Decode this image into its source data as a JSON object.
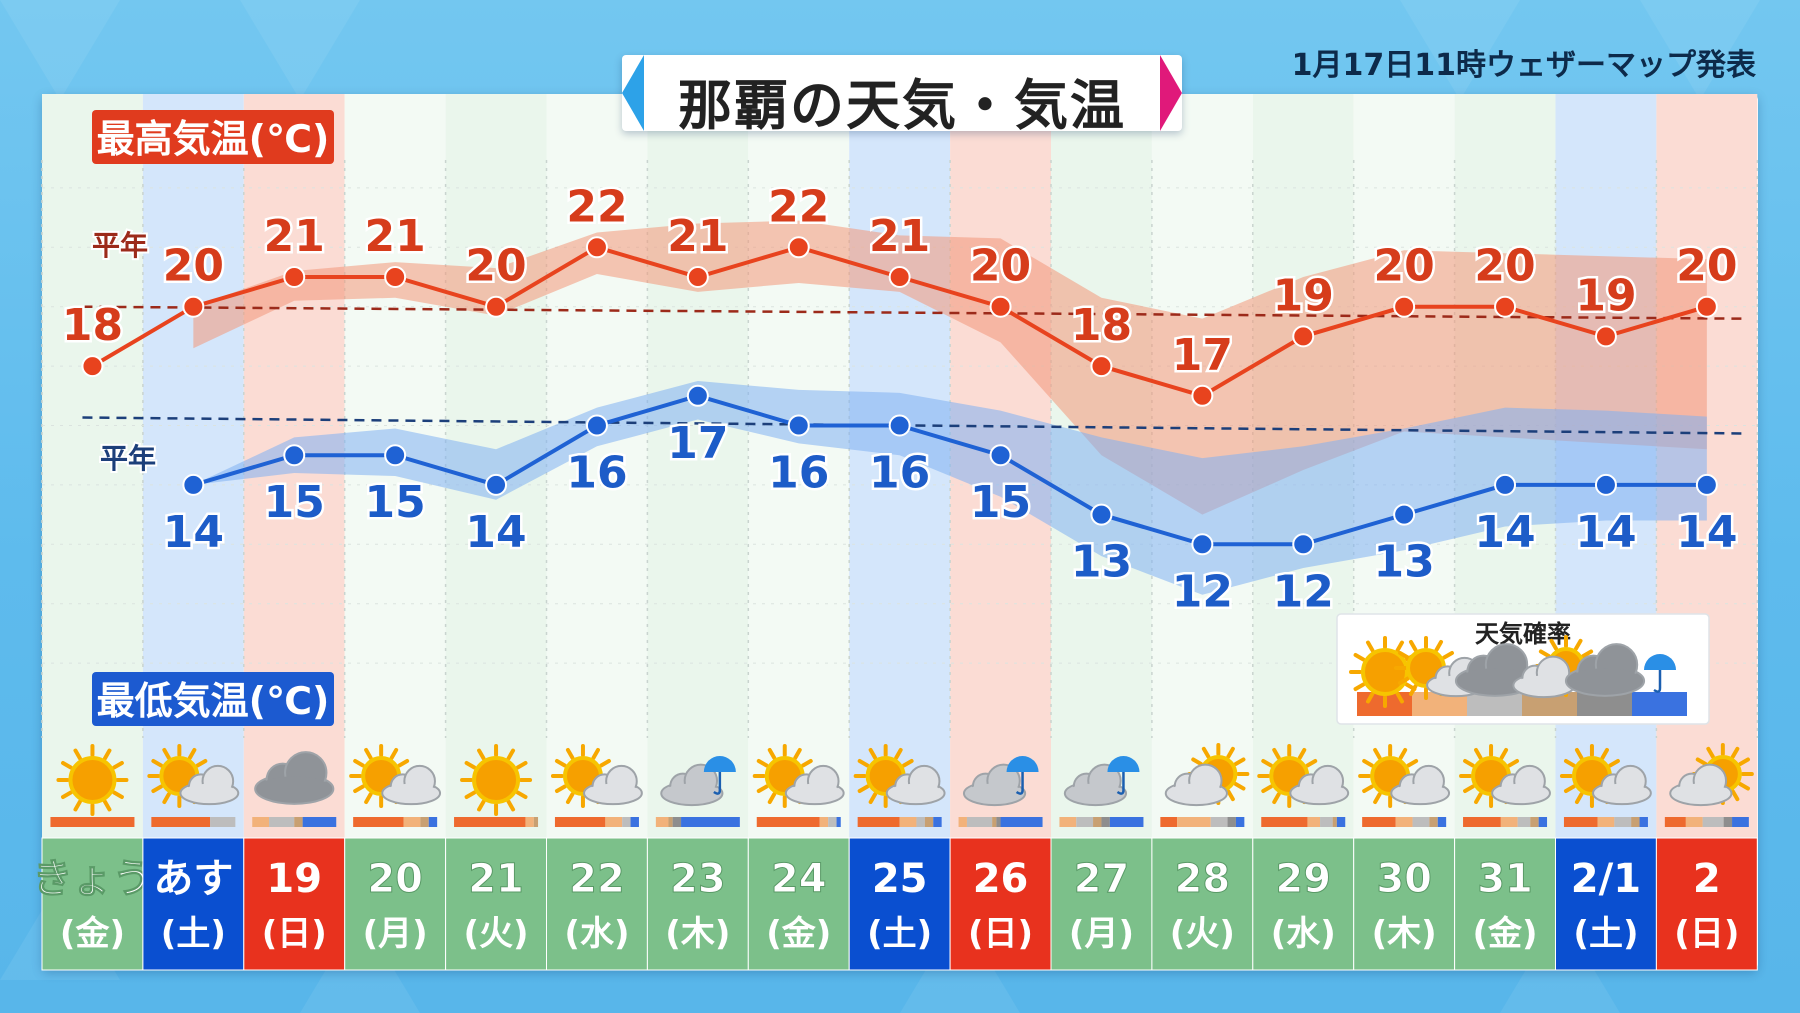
{
  "title": "那覇の天気・気温",
  "issued": "1月17日11時ウェザーマップ発表",
  "labels": {
    "high_title": "最高気温(℃)",
    "low_title": "最低気温(℃)",
    "normal_high": "平年",
    "normal_low": "平年",
    "legend_title": "天気確率"
  },
  "colors": {
    "high_line": "#e8431e",
    "low_line": "#1f62d4",
    "sat_header": "#0a4fd0",
    "sun_header": "#e8321e",
    "weekday_header": "#7cc08a"
  },
  "chart_data": {
    "type": "line",
    "title": "那覇の天気・気温",
    "ylim": [
      5,
      27
    ],
    "grid": true,
    "categories": [
      "きょう(金)",
      "あす(土)",
      "19(日)",
      "20(月)",
      "21(火)",
      "22(水)",
      "23(木)",
      "24(金)",
      "25(土)",
      "26(日)",
      "27(月)",
      "28(火)",
      "29(水)",
      "30(木)",
      "31(金)",
      "2/1(土)",
      "2(日)"
    ],
    "days": [
      {
        "top": "きょう",
        "dow": "(金)",
        "kind": "weekday",
        "icon": "sunny-icon"
      },
      {
        "top": "あす",
        "dow": "(土)",
        "kind": "sat",
        "icon": "sunny-cloudy-icon"
      },
      {
        "top": "19",
        "dow": "(日)",
        "kind": "sun",
        "icon": "cloudy-icon"
      },
      {
        "top": "20",
        "dow": "(月)",
        "kind": "weekday",
        "icon": "sunny-cloudy-icon"
      },
      {
        "top": "21",
        "dow": "(火)",
        "kind": "weekday",
        "icon": "sunny-icon"
      },
      {
        "top": "22",
        "dow": "(水)",
        "kind": "weekday",
        "icon": "sunny-cloudy-icon"
      },
      {
        "top": "23",
        "dow": "(木)",
        "kind": "weekday",
        "icon": "cloudy-rain-icon"
      },
      {
        "top": "24",
        "dow": "(金)",
        "kind": "weekday",
        "icon": "sunny-cloudy-icon"
      },
      {
        "top": "25",
        "dow": "(土)",
        "kind": "sat",
        "icon": "sunny-cloudy-icon"
      },
      {
        "top": "26",
        "dow": "(日)",
        "kind": "sun",
        "icon": "cloudy-rain-icon"
      },
      {
        "top": "27",
        "dow": "(月)",
        "kind": "weekday",
        "icon": "cloudy-rain-icon"
      },
      {
        "top": "28",
        "dow": "(火)",
        "kind": "weekday",
        "icon": "cloudy-sunny-icon"
      },
      {
        "top": "29",
        "dow": "(水)",
        "kind": "weekday",
        "icon": "sunny-cloudy-icon"
      },
      {
        "top": "30",
        "dow": "(木)",
        "kind": "weekday",
        "icon": "sunny-cloudy-icon"
      },
      {
        "top": "31",
        "dow": "(金)",
        "kind": "weekday",
        "icon": "sunny-cloudy-icon"
      },
      {
        "top": "2/1",
        "dow": "(土)",
        "kind": "sat",
        "icon": "sunny-cloudy-icon"
      },
      {
        "top": "2",
        "dow": "(日)",
        "kind": "sun",
        "icon": "cloudy-sunny-icon"
      }
    ],
    "series": [
      {
        "name": "最高気温(℃)",
        "values": [
          18,
          20,
          21,
          21,
          20,
          22,
          21,
          22,
          21,
          20,
          18,
          17,
          19,
          20,
          20,
          19,
          20
        ]
      },
      {
        "name": "最低気温(℃)",
        "values": [
          null,
          14,
          15,
          15,
          14,
          16,
          17,
          16,
          16,
          15,
          13,
          12,
          12,
          13,
          14,
          14,
          14
        ]
      }
    ],
    "normal_high": 20,
    "normal_low": 16,
    "high_range": [
      [
        null,
        null
      ],
      [
        18.6,
        20
      ],
      [
        20.2,
        21.2
      ],
      [
        20.3,
        21.5
      ],
      [
        19.7,
        21.3
      ],
      [
        21.1,
        22.5
      ],
      [
        20.5,
        22.8
      ],
      [
        20.8,
        22.9
      ],
      [
        20.5,
        22.4
      ],
      [
        18.8,
        22.3
      ],
      [
        15,
        20.3
      ],
      [
        13,
        19.6
      ],
      [
        14.5,
        21
      ],
      [
        15.8,
        21.9
      ],
      [
        15.6,
        21.8
      ],
      [
        15.4,
        21.7
      ],
      [
        15.2,
        21.6
      ]
    ],
    "low_range": [
      [
        null,
        null
      ],
      [
        14,
        14
      ],
      [
        14.4,
        15.6
      ],
      [
        14.3,
        15.9
      ],
      [
        13.5,
        15.2
      ],
      [
        15.3,
        16.6
      ],
      [
        16.2,
        17.5
      ],
      [
        15.4,
        17.2
      ],
      [
        15,
        17.1
      ],
      [
        13.6,
        16.5
      ],
      [
        11.6,
        15.6
      ],
      [
        10.3,
        14.9
      ],
      [
        11.2,
        15.3
      ],
      [
        11.8,
        15.9
      ],
      [
        12.6,
        16.6
      ],
      [
        12.8,
        16.5
      ],
      [
        12.8,
        16.3
      ]
    ],
    "probability_bars": [
      [
        [
          0,
          1
        ]
      ],
      [
        [
          0,
          0.7
        ],
        [
          2,
          0.3
        ]
      ],
      [
        [
          1,
          0.2
        ],
        [
          2,
          0.3
        ],
        [
          3,
          0.1
        ],
        [
          5,
          0.4
        ]
      ],
      [
        [
          0,
          0.6
        ],
        [
          1,
          0.2
        ],
        [
          3,
          0.1
        ],
        [
          5,
          0.1
        ]
      ],
      [
        [
          0,
          0.85
        ],
        [
          1,
          0.1
        ],
        [
          3,
          0.05
        ]
      ],
      [
        [
          0,
          0.6
        ],
        [
          1,
          0.2
        ],
        [
          2,
          0.1
        ],
        [
          5,
          0.1
        ]
      ],
      [
        [
          1,
          0.15
        ],
        [
          3,
          0.05
        ],
        [
          4,
          0.1
        ],
        [
          5,
          0.7
        ]
      ],
      [
        [
          0,
          0.75
        ],
        [
          1,
          0.1
        ],
        [
          2,
          0.1
        ],
        [
          5,
          0.05
        ]
      ],
      [
        [
          0,
          0.5
        ],
        [
          1,
          0.2
        ],
        [
          2,
          0.1
        ],
        [
          3,
          0.1
        ],
        [
          5,
          0.1
        ]
      ],
      [
        [
          1,
          0.1
        ],
        [
          2,
          0.3
        ],
        [
          3,
          0.05
        ],
        [
          4,
          0.05
        ],
        [
          5,
          0.5
        ]
      ],
      [
        [
          1,
          0.2
        ],
        [
          2,
          0.2
        ],
        [
          3,
          0.1
        ],
        [
          4,
          0.1
        ],
        [
          5,
          0.4
        ]
      ],
      [
        [
          0,
          0.2
        ],
        [
          1,
          0.4
        ],
        [
          2,
          0.2
        ],
        [
          4,
          0.1
        ],
        [
          5,
          0.1
        ]
      ],
      [
        [
          0,
          0.55
        ],
        [
          1,
          0.15
        ],
        [
          2,
          0.15
        ],
        [
          3,
          0.05
        ],
        [
          5,
          0.1
        ]
      ],
      [
        [
          0,
          0.4
        ],
        [
          1,
          0.2
        ],
        [
          2,
          0.2
        ],
        [
          3,
          0.1
        ],
        [
          5,
          0.1
        ]
      ],
      [
        [
          0,
          0.45
        ],
        [
          1,
          0.2
        ],
        [
          2,
          0.15
        ],
        [
          3,
          0.1
        ],
        [
          5,
          0.1
        ]
      ],
      [
        [
          0,
          0.4
        ],
        [
          1,
          0.2
        ],
        [
          2,
          0.2
        ],
        [
          3,
          0.1
        ],
        [
          5,
          0.1
        ]
      ],
      [
        [
          0,
          0.25
        ],
        [
          1,
          0.2
        ],
        [
          2,
          0.25
        ],
        [
          4,
          0.1
        ],
        [
          5,
          0.2
        ]
      ]
    ],
    "legend": [
      {
        "icon": "sunny-icon",
        "color": "#ee6a2e"
      },
      {
        "icon": "sunny-cloudy-icon",
        "color": "#f2b27a"
      },
      {
        "icon": "cloudy-icon",
        "color": "#bdbdbd"
      },
      {
        "icon": "cloudy-sunny-icon",
        "color": "#c8a072"
      },
      {
        "icon": "cloudy-icon",
        "color": "#8e8e8e"
      },
      {
        "icon": "rain-icon",
        "color": "#3a72e0"
      }
    ]
  }
}
